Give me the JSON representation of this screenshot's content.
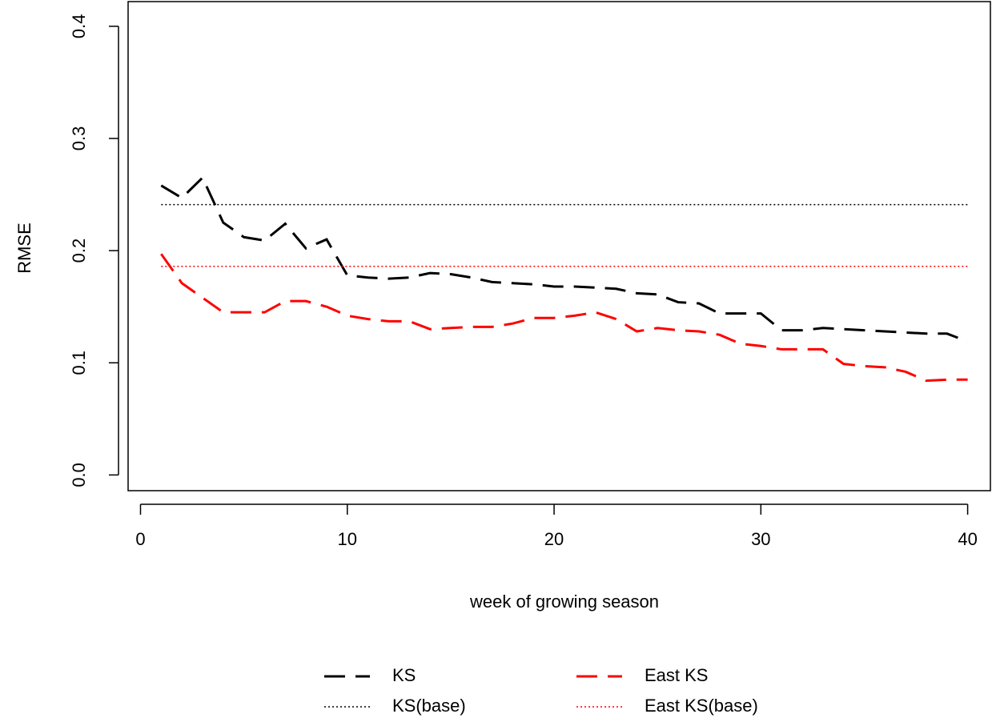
{
  "chart_data": {
    "type": "line",
    "x_label": "week of growing season",
    "y_label": "RMSE",
    "x": [
      1,
      2,
      3,
      4,
      5,
      6,
      7,
      8,
      9,
      10,
      11,
      12,
      13,
      14,
      15,
      16,
      17,
      18,
      19,
      20,
      21,
      22,
      23,
      24,
      25,
      26,
      27,
      28,
      29,
      30,
      31,
      32,
      33,
      34,
      35,
      36,
      37,
      38,
      39,
      40
    ],
    "series": [
      {
        "name": "KS",
        "color": "#000000",
        "style": "dashed",
        "values": [
          0.258,
          0.247,
          0.265,
          0.225,
          0.212,
          0.209,
          0.224,
          0.202,
          0.21,
          0.178,
          0.176,
          0.175,
          0.176,
          0.18,
          0.179,
          0.176,
          0.172,
          0.171,
          0.17,
          0.168,
          0.168,
          0.167,
          0.166,
          0.162,
          0.161,
          0.154,
          0.153,
          0.144,
          0.144,
          0.144,
          0.129,
          0.129,
          0.131,
          0.13,
          0.129,
          0.128,
          0.127,
          0.126,
          0.126,
          0.119
        ]
      },
      {
        "name": "KS(base)",
        "color": "#000000",
        "style": "dotted",
        "value": 0.241
      },
      {
        "name": "East KS",
        "color": "#ff0000",
        "style": "dashed",
        "values": [
          0.197,
          0.171,
          0.158,
          0.145,
          0.145,
          0.145,
          0.155,
          0.155,
          0.15,
          0.142,
          0.139,
          0.137,
          0.137,
          0.13,
          0.131,
          0.132,
          0.132,
          0.135,
          0.14,
          0.14,
          0.142,
          0.145,
          0.139,
          0.128,
          0.131,
          0.129,
          0.128,
          0.125,
          0.117,
          0.115,
          0.112,
          0.112,
          0.112,
          0.099,
          0.097,
          0.096,
          0.092,
          0.084,
          0.085,
          0.085
        ]
      },
      {
        "name": "East KS(base)",
        "color": "#ff0000",
        "style": "dotted",
        "value": 0.186
      }
    ],
    "xlim": [
      -0.6,
      41.1
    ],
    "ylim": [
      -0.014,
      0.422
    ],
    "xticks": [
      0,
      10,
      20,
      30,
      40
    ],
    "yticks": [
      {
        "value": 0,
        "label": "0.0"
      },
      0.1,
      0.2,
      0.3,
      0.4
    ],
    "legend": "bottom"
  }
}
